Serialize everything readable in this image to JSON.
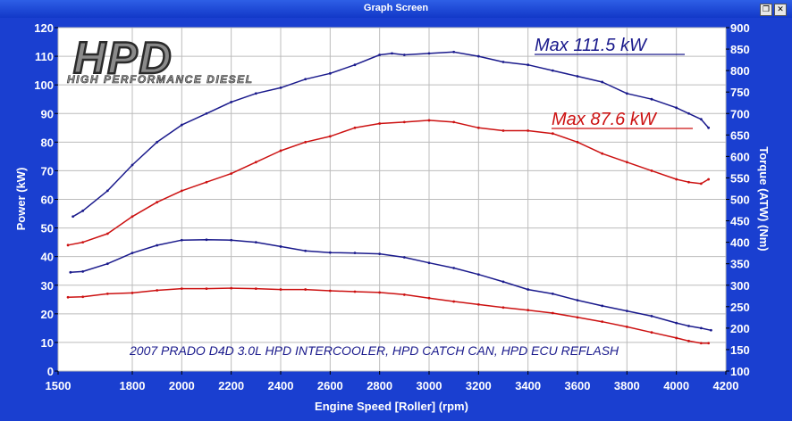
{
  "window": {
    "title": "Graph Screen",
    "restore_glyph": "❐",
    "close_glyph": "✕"
  },
  "logo": {
    "main": "HPD",
    "sub": "HIGH PERFORMANCE DIESEL"
  },
  "chart_data": {
    "type": "line",
    "title": "",
    "xlabel": "Engine Speed [Roller] (rpm)",
    "ylabel": "Power (kW)",
    "y2label": "Torque (ATW) (Nm)",
    "xlim": [
      1500,
      4200
    ],
    "ylim": [
      0,
      120
    ],
    "y2lim": [
      100,
      900
    ],
    "x_ticks": [
      1500,
      1800,
      2000,
      2200,
      2400,
      2600,
      2800,
      3000,
      3200,
      3400,
      3600,
      3800,
      4000,
      4200
    ],
    "y_ticks": [
      0,
      10,
      20,
      30,
      40,
      50,
      60,
      70,
      80,
      90,
      100,
      110,
      120
    ],
    "y2_ticks": [
      100,
      150,
      200,
      250,
      300,
      350,
      400,
      450,
      500,
      550,
      600,
      650,
      700,
      750,
      800,
      850,
      900
    ],
    "grid": true,
    "annotations": {
      "max_blue": "Max 111.5 kW",
      "max_red": "Max 87.6 kW",
      "note": "2007 PRADO D4D 3.0L HPD INTERCOOLER, HPD CATCH CAN, HPD ECU REFLASH"
    },
    "series": [
      {
        "axis": "left",
        "color": "#1a1a8c",
        "x": [
          1560,
          1600,
          1700,
          1800,
          1900,
          2000,
          2100,
          2200,
          2300,
          2400,
          2500,
          2600,
          2700,
          2800,
          2850,
          2900,
          3000,
          3100,
          3200,
          3300,
          3400,
          3500,
          3600,
          3700,
          3800,
          3900,
          4000,
          4050,
          4100,
          4130
        ],
        "values": [
          54,
          56,
          63,
          72,
          80,
          86,
          90,
          94,
          97,
          99,
          102,
          104,
          107,
          110.5,
          111,
          110.5,
          111,
          111.5,
          110,
          108,
          107,
          105,
          103,
          101,
          97,
          95,
          92,
          90,
          88,
          85
        ]
      },
      {
        "axis": "left",
        "color": "#cc1111",
        "x": [
          1540,
          1600,
          1700,
          1800,
          1900,
          2000,
          2100,
          2200,
          2300,
          2400,
          2500,
          2600,
          2700,
          2800,
          2900,
          3000,
          3100,
          3200,
          3300,
          3400,
          3500,
          3600,
          3700,
          3800,
          3900,
          4000,
          4050,
          4100,
          4130
        ],
        "values": [
          44,
          45,
          48,
          54,
          59,
          63,
          66,
          69,
          73,
          77,
          80,
          82,
          85,
          86.5,
          87,
          87.6,
          87,
          85,
          84,
          84,
          83,
          80,
          76,
          73,
          70,
          67,
          66,
          65.5,
          67
        ]
      },
      {
        "axis": "right",
        "color": "#1a1a8c",
        "x": [
          1550,
          1600,
          1700,
          1800,
          1900,
          2000,
          2100,
          2200,
          2300,
          2400,
          2500,
          2600,
          2700,
          2800,
          2900,
          3000,
          3100,
          3200,
          3300,
          3400,
          3500,
          3600,
          3700,
          3800,
          3900,
          4000,
          4050,
          4100,
          4140
        ],
        "values": [
          330,
          332,
          350,
          375,
          393,
          405,
          406,
          405,
          400,
          390,
          380,
          376,
          375,
          373,
          365,
          352,
          340,
          325,
          308,
          290,
          280,
          265,
          252,
          240,
          228,
          212,
          205,
          200,
          195
        ]
      },
      {
        "axis": "right",
        "color": "#cc1111",
        "x": [
          1540,
          1600,
          1700,
          1800,
          1900,
          2000,
          2100,
          2200,
          2300,
          2400,
          2500,
          2600,
          2700,
          2800,
          2900,
          3000,
          3100,
          3200,
          3300,
          3400,
          3500,
          3600,
          3700,
          3800,
          3900,
          4000,
          4050,
          4100,
          4130
        ],
        "values": [
          272,
          273,
          280,
          282,
          288,
          292,
          292,
          293,
          292,
          290,
          290,
          287,
          285,
          283,
          278,
          270,
          262,
          255,
          248,
          242,
          235,
          225,
          215,
          203,
          190,
          177,
          170,
          165,
          165
        ]
      }
    ]
  }
}
